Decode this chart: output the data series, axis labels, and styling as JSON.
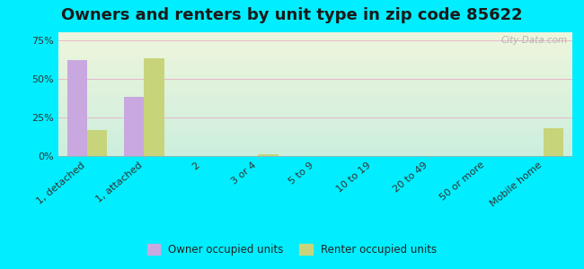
{
  "title": "Owners and renters by unit type in zip code 85622",
  "categories": [
    "1, detached",
    "1, attached",
    "2",
    "3 or 4",
    "5 to 9",
    "10 to 19",
    "20 to 49",
    "50 or more",
    "Mobile home"
  ],
  "owner_values": [
    62,
    38,
    0,
    0,
    0,
    0,
    0,
    0,
    0
  ],
  "renter_values": [
    17,
    63,
    0,
    1,
    0,
    0,
    0,
    0,
    18
  ],
  "owner_color": "#c9a8e0",
  "renter_color": "#c8d47a",
  "background_outer": "#00eeff",
  "grad_top": "#eef5dc",
  "grad_bottom": "#cceedd",
  "grid_color": "#e8b8cc",
  "yticks": [
    0,
    25,
    50,
    75
  ],
  "ylim": [
    0,
    80
  ],
  "bar_width": 0.35,
  "legend_owner": "Owner occupied units",
  "legend_renter": "Renter occupied units",
  "title_fontsize": 13,
  "axis_fontsize": 8,
  "watermark": "City-Data.com"
}
